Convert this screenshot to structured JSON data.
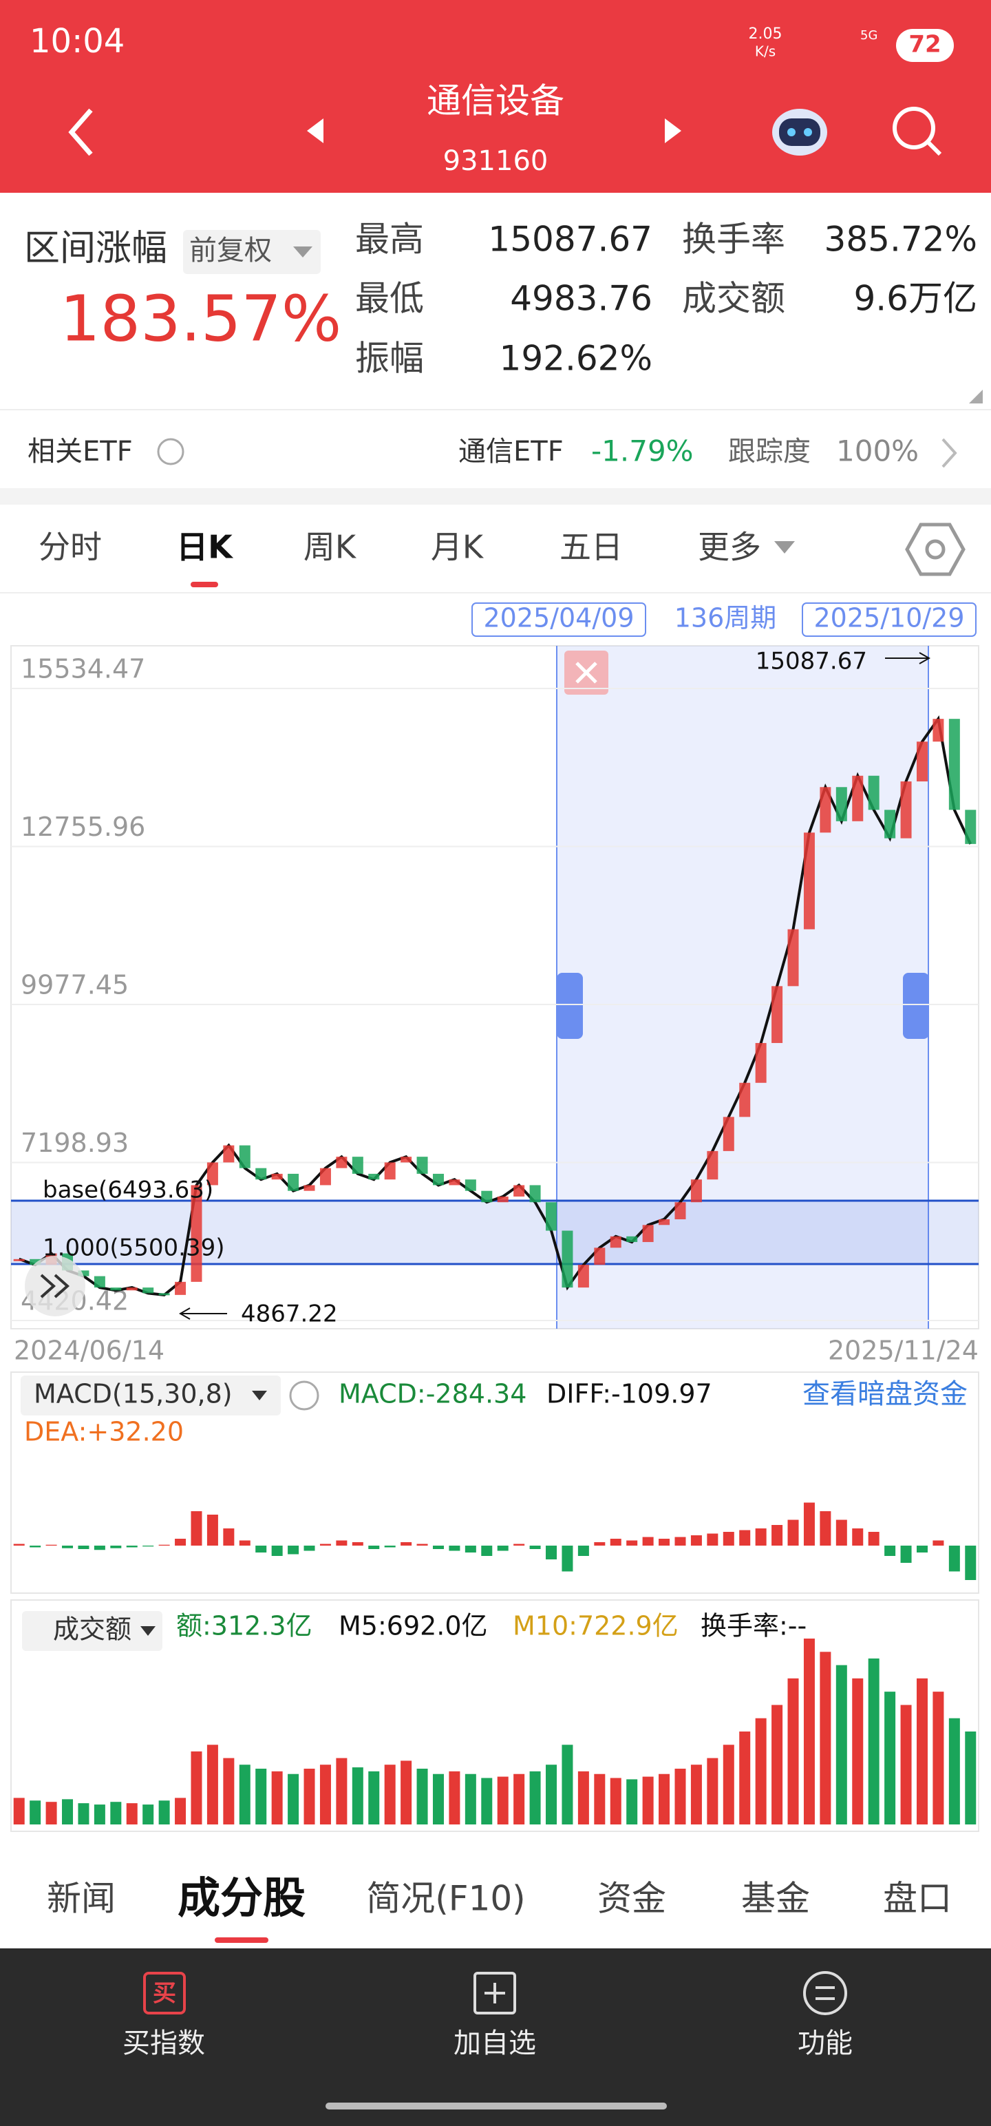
{
  "status": {
    "time": "10:04",
    "speed": "2.05",
    "speed_unit": "K/s",
    "network": "5G",
    "battery": "72"
  },
  "header": {
    "title": "通信设备",
    "code": "931160"
  },
  "stats": {
    "range_label": "区间涨幅",
    "adjust": "前复权",
    "range_change": "183.57%",
    "items": [
      {
        "label": "最高",
        "value": "15087.67"
      },
      {
        "label": "换手率",
        "value": "385.72%"
      },
      {
        "label": "最低",
        "value": "4983.76"
      },
      {
        "label": "成交额",
        "value": "9.6万亿"
      },
      {
        "label": "振幅",
        "value": "192.62%"
      }
    ]
  },
  "etf": {
    "label": "相关ETF",
    "name": "通信ETF",
    "change": "-1.79%",
    "track_label": "跟踪度",
    "track": "100%"
  },
  "tabs": [
    "分时",
    "日K",
    "周K",
    "月K",
    "五日",
    "更多"
  ],
  "chart": {
    "range_start": "2025/04/09",
    "period": "136周期",
    "range_end": "2025/10/29",
    "yticks": [
      15534.47,
      12755.96,
      9977.45,
      7198.93,
      4420.42
    ],
    "max_label": "15087.67",
    "min_label": "4867.22",
    "x_start": "2024/06/14",
    "x_end": "2025/11/24",
    "fib_labels": [
      "base(6493.63)",
      "1.000(5500.39)"
    ],
    "close": [
      5500,
      5400,
      5600,
      5300,
      5200,
      5000,
      4950,
      5000,
      4900,
      4870,
      5100,
      6800,
      7200,
      7500,
      7100,
      6900,
      7000,
      6700,
      6800,
      7100,
      7300,
      7000,
      6900,
      7200,
      7300,
      7000,
      6800,
      6900,
      6700,
      6500,
      6600,
      6800,
      6500,
      6000,
      5000,
      5400,
      5700,
      5900,
      5800,
      6100,
      6200,
      6500,
      6900,
      7400,
      8000,
      8600,
      9300,
      10300,
      11300,
      13000,
      13800,
      13200,
      14000,
      13400,
      12900,
      13900,
      14600,
      15000,
      13400,
      12800
    ]
  },
  "macd": {
    "title": "MACD(15,30,8)",
    "macd": "MACD:-284.34",
    "diff": "DIFF:-109.97",
    "dea": "DEA:+32.20",
    "link": "查看暗盘资金",
    "hist": [
      10,
      -10,
      5,
      -15,
      -20,
      -25,
      -15,
      -10,
      -5,
      5,
      40,
      200,
      180,
      100,
      30,
      -40,
      -60,
      -50,
      -30,
      10,
      30,
      20,
      -20,
      -10,
      20,
      10,
      -20,
      -30,
      -40,
      -60,
      -30,
      10,
      -20,
      -80,
      -150,
      -60,
      20,
      40,
      30,
      50,
      40,
      50,
      60,
      70,
      80,
      90,
      100,
      120,
      150,
      250,
      200,
      150,
      100,
      80,
      -60,
      -100,
      -40,
      30,
      -150,
      -200
    ]
  },
  "volume": {
    "title": "成交额",
    "amount": "额:312.3亿",
    "m5": "M5:692.0亿",
    "m10": "M10:722.9亿",
    "turnover": "换手率:--",
    "values": [
      200,
      180,
      170,
      190,
      160,
      150,
      170,
      160,
      150,
      180,
      200,
      550,
      600,
      500,
      450,
      420,
      400,
      380,
      420,
      450,
      500,
      430,
      400,
      450,
      480,
      420,
      380,
      400,
      380,
      350,
      360,
      380,
      400,
      450,
      600,
      400,
      380,
      350,
      340,
      360,
      380,
      420,
      450,
      500,
      600,
      700,
      800,
      900,
      1100,
      1400,
      1300,
      1200,
      1100,
      1250,
      1000,
      900,
      1100,
      1000,
      800,
      700
    ]
  },
  "bottom_tabs": [
    "新闻",
    "成分股",
    "简况(F10)",
    "资金",
    "基金",
    "盘口"
  ],
  "nav": [
    {
      "icon": "买",
      "label": "买指数"
    },
    {
      "label": "加自选"
    },
    {
      "label": "功能"
    }
  ]
}
